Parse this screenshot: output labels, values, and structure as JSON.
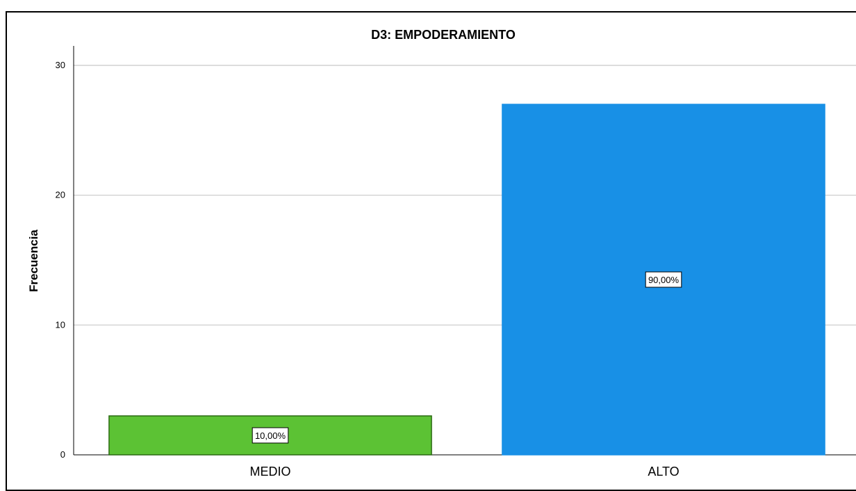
{
  "chart_data": {
    "type": "bar",
    "title": "D3: EMPODERAMIENTO",
    "xlabel": "",
    "ylabel": "Frecuencia",
    "categories": [
      "MEDIO",
      "ALTO"
    ],
    "values": [
      3,
      27
    ],
    "data_labels": [
      "10,00%",
      "90,00%"
    ],
    "bar_colors": [
      "#5cc234",
      "#1890e6"
    ],
    "bar_outline_colors": [
      "#2a6a12",
      "#1890e6"
    ],
    "ylim": [
      0,
      31.5
    ],
    "yticks": [
      0,
      10,
      20,
      30
    ],
    "grid": true,
    "legend": "none"
  }
}
